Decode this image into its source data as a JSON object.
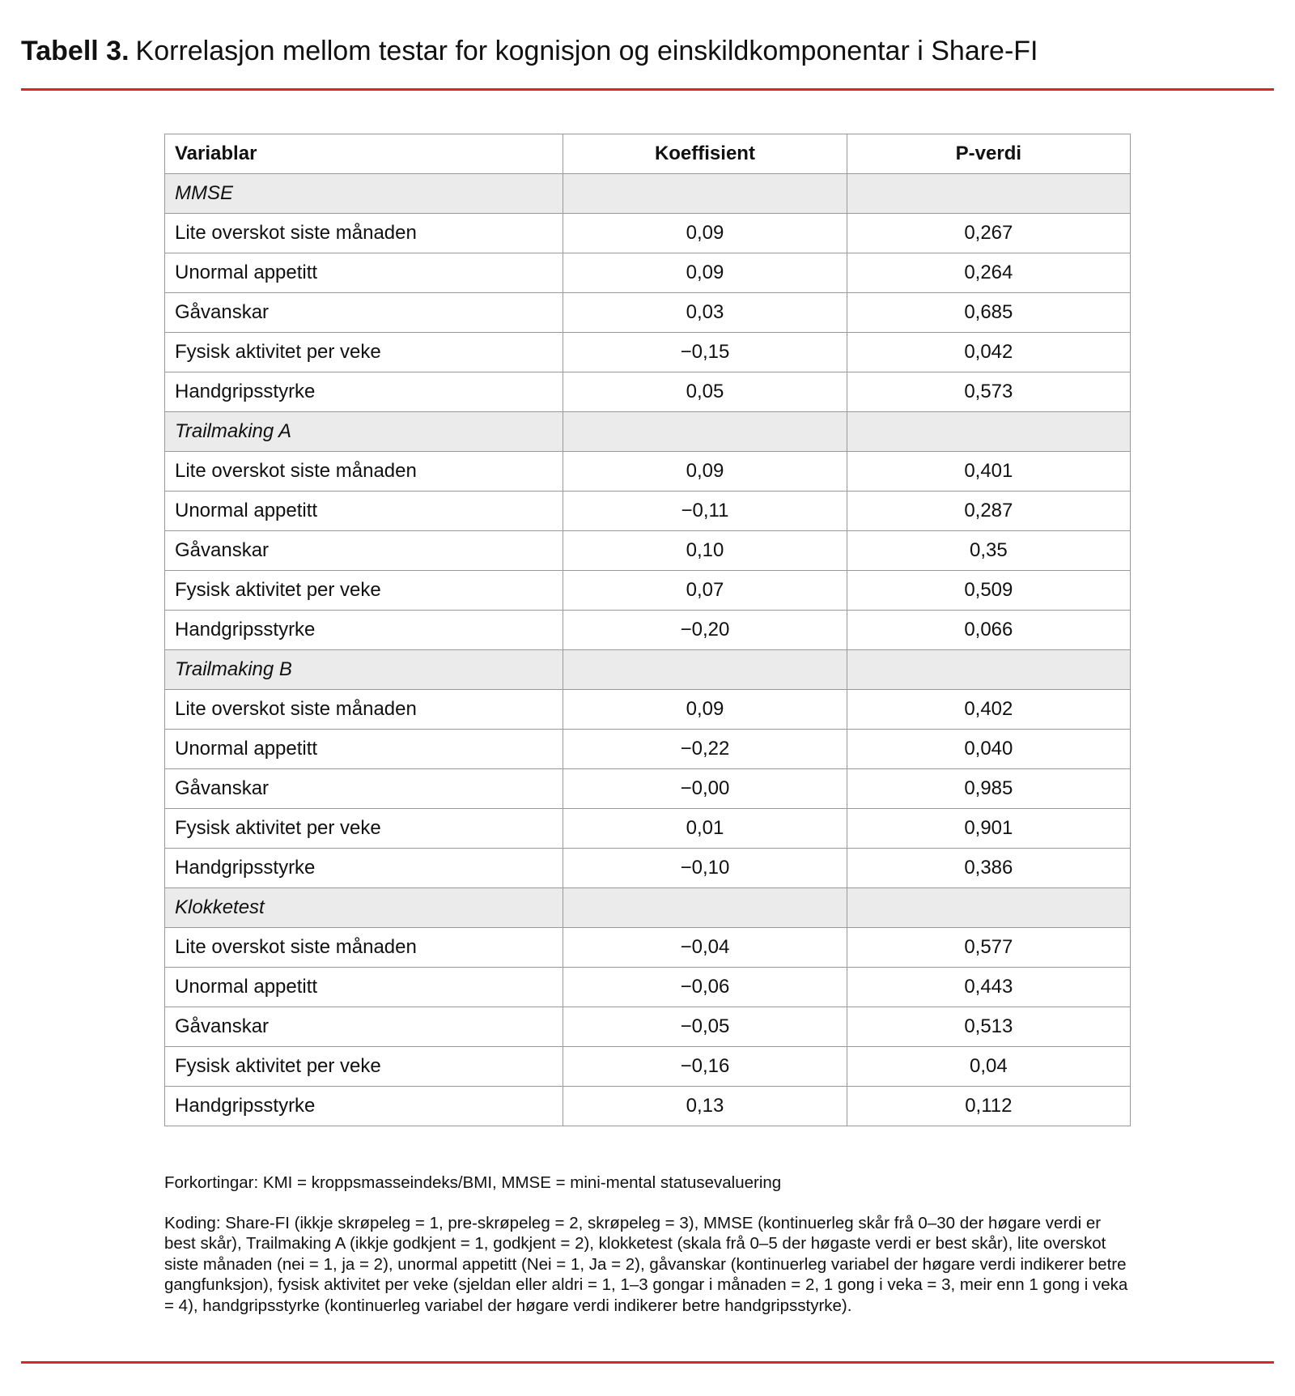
{
  "header": {
    "label": "Tabell 3.",
    "title": "Korrelasjon mellom testar for kognisjon og einskildkomponentar i Share-FI"
  },
  "table": {
    "columns": [
      "Variablar",
      "Koeffisient",
      "P-verdi"
    ],
    "groups": [
      {
        "name": "MMSE",
        "rows": [
          [
            "Lite overskot siste månaden",
            "0,09",
            "0,267"
          ],
          [
            "Unormal appetitt",
            "0,09",
            "0,264"
          ],
          [
            "Gåvanskar",
            "0,03",
            "0,685"
          ],
          [
            "Fysisk aktivitet per veke",
            "−0,15",
            "0,042"
          ],
          [
            "Handgripsstyrke",
            "0,05",
            "0,573"
          ]
        ]
      },
      {
        "name": "Trailmaking A",
        "rows": [
          [
            "Lite overskot siste månaden",
            "0,09",
            "0,401"
          ],
          [
            "Unormal appetitt",
            "−0,11",
            "0,287"
          ],
          [
            "Gåvanskar",
            "0,10",
            "0,35"
          ],
          [
            "Fysisk aktivitet per veke",
            "0,07",
            "0,509"
          ],
          [
            "Handgripsstyrke",
            "−0,20",
            "0,066"
          ]
        ]
      },
      {
        "name": "Trailmaking B",
        "rows": [
          [
            "Lite overskot siste månaden",
            "0,09",
            "0,402"
          ],
          [
            "Unormal appetitt",
            "−0,22",
            "0,040"
          ],
          [
            "Gåvanskar",
            "−0,00",
            "0,985"
          ],
          [
            "Fysisk aktivitet per veke",
            "0,01",
            "0,901"
          ],
          [
            "Handgripsstyrke",
            "−0,10",
            "0,386"
          ]
        ]
      },
      {
        "name": "Klokketest",
        "rows": [
          [
            "Lite overskot siste månaden",
            "−0,04",
            "0,577"
          ],
          [
            "Unormal appetitt",
            "−0,06",
            "0,443"
          ],
          [
            "Gåvanskar",
            "−0,05",
            "0,513"
          ],
          [
            "Fysisk aktivitet per veke",
            "−0,16",
            "0,04"
          ],
          [
            "Handgripsstyrke",
            "0,13",
            "0,112"
          ]
        ]
      }
    ]
  },
  "notes": [
    "Forkortingar: KMI = kroppsmasseindeks/BMI, MMSE = mini-mental statusevaluering",
    "Koding: Share-FI (ikkje skrøpeleg = 1, pre-skrøpeleg = 2, skrøpeleg = 3), MMSE (kontinuerleg skår frå 0–30 der høgare verdi er best skår), Trailmaking A (ikkje godkjent = 1, godkjent = 2), klokketest (skala frå 0–5 der høgaste verdi er best skår), lite overskot siste månaden (nei = 1, ja = 2), unormal appetitt (Nei = 1, Ja = 2), gåvanskar (kontinuerleg variabel der høgare verdi indikerer betre gangfunksjon), fysisk aktivitet per veke (sjeldan eller aldri = 1, 1–3 gongar i månaden = 2, 1 gong i veka = 3, meir enn 1 gong i veka = 4), handgripsstyrke (kontinuerleg variabel der høgare verdi indikerer betre handgripsstyrke)."
  ]
}
